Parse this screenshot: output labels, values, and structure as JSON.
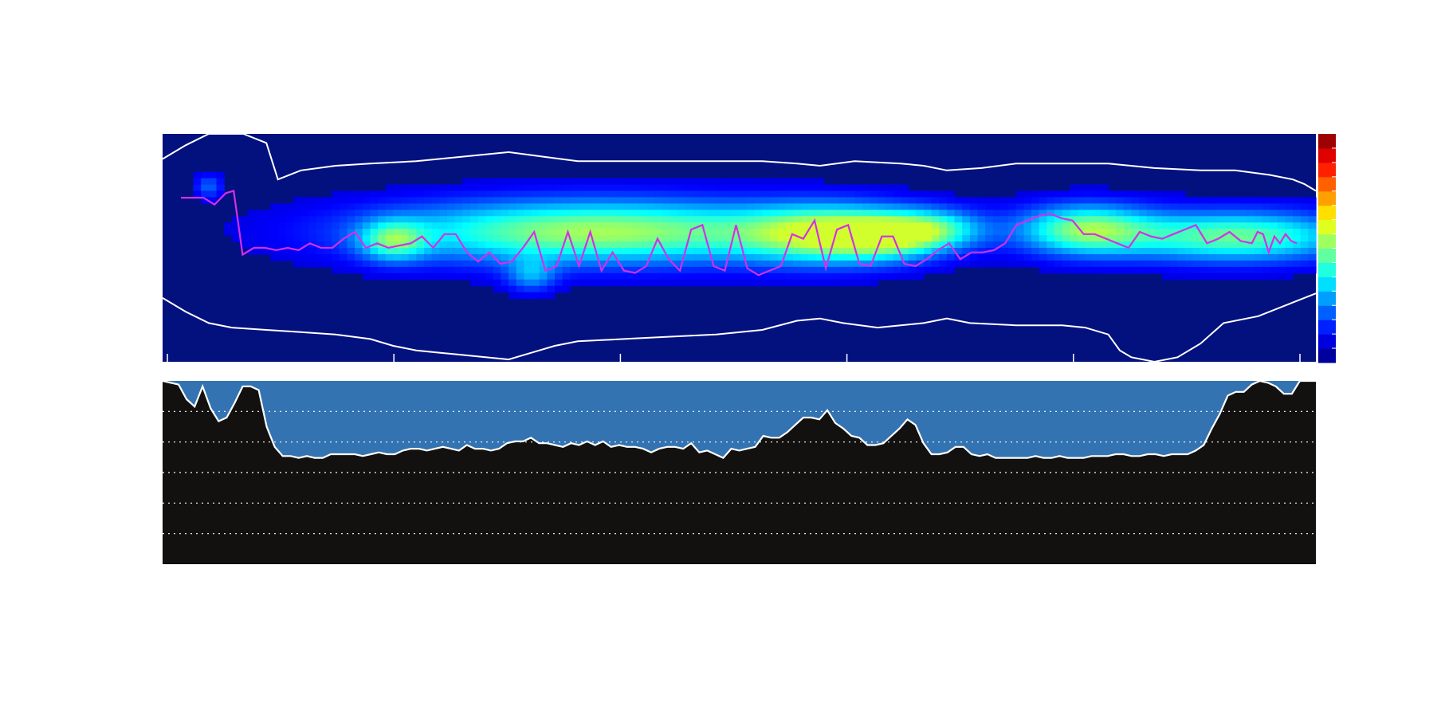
{
  "chart_data": [
    {
      "type": "heatmap",
      "title": "",
      "xlabel": "",
      "ylabel": "",
      "colormap": "jet",
      "background_color": "#03117f",
      "contour_color": "#ffffff",
      "track_color": "#d52fe8",
      "x_tick_count": 6,
      "colorbar_levels": 16,
      "blobs": [
        {
          "x": 0.2,
          "y": 0.47,
          "sx": 0.02,
          "sy": 0.06,
          "v": 0.3
        },
        {
          "x": 0.38,
          "y": 0.43,
          "sx": 0.13,
          "sy": 0.095,
          "v": 0.46
        },
        {
          "x": 0.58,
          "y": 0.44,
          "sx": 0.05,
          "sy": 0.085,
          "v": 0.42
        },
        {
          "x": 0.63,
          "y": 0.45,
          "sx": 0.03,
          "sy": 0.065,
          "v": 0.25
        },
        {
          "x": 0.67,
          "y": 0.42,
          "sx": 0.03,
          "sy": 0.06,
          "v": 0.28
        },
        {
          "x": 0.8,
          "y": 0.42,
          "sx": 0.04,
          "sy": 0.075,
          "v": 0.4
        },
        {
          "x": 0.93,
          "y": 0.45,
          "sx": 0.07,
          "sy": 0.075,
          "v": 0.4
        },
        {
          "x": 0.32,
          "y": 0.62,
          "sx": 0.015,
          "sy": 0.05,
          "v": 0.18
        },
        {
          "x": 0.04,
          "y": 0.23,
          "sx": 0.008,
          "sy": 0.035,
          "v": 0.14
        }
      ],
      "track": [
        [
          0.005,
          0.28
        ],
        [
          0.025,
          0.28
        ],
        [
          0.035,
          0.31
        ],
        [
          0.045,
          0.26
        ],
        [
          0.052,
          0.25
        ],
        [
          0.06,
          0.53
        ],
        [
          0.07,
          0.5
        ],
        [
          0.08,
          0.5
        ],
        [
          0.09,
          0.51
        ],
        [
          0.1,
          0.5
        ],
        [
          0.11,
          0.51
        ],
        [
          0.12,
          0.48
        ],
        [
          0.13,
          0.5
        ],
        [
          0.14,
          0.5
        ],
        [
          0.15,
          0.46
        ],
        [
          0.16,
          0.43
        ],
        [
          0.17,
          0.5
        ],
        [
          0.18,
          0.48
        ],
        [
          0.19,
          0.5
        ],
        [
          0.2,
          0.49
        ],
        [
          0.21,
          0.48
        ],
        [
          0.22,
          0.45
        ],
        [
          0.23,
          0.5
        ],
        [
          0.24,
          0.44
        ],
        [
          0.25,
          0.44
        ],
        [
          0.26,
          0.52
        ],
        [
          0.27,
          0.56
        ],
        [
          0.28,
          0.52
        ],
        [
          0.29,
          0.57
        ],
        [
          0.3,
          0.56
        ],
        [
          0.31,
          0.5
        ],
        [
          0.32,
          0.43
        ],
        [
          0.33,
          0.6
        ],
        [
          0.34,
          0.58
        ],
        [
          0.35,
          0.43
        ],
        [
          0.36,
          0.58
        ],
        [
          0.37,
          0.43
        ],
        [
          0.38,
          0.6
        ],
        [
          0.39,
          0.52
        ],
        [
          0.4,
          0.6
        ],
        [
          0.41,
          0.61
        ],
        [
          0.42,
          0.58
        ],
        [
          0.43,
          0.46
        ],
        [
          0.44,
          0.55
        ],
        [
          0.45,
          0.6
        ],
        [
          0.46,
          0.42
        ],
        [
          0.47,
          0.4
        ],
        [
          0.48,
          0.58
        ],
        [
          0.49,
          0.6
        ],
        [
          0.5,
          0.4
        ],
        [
          0.51,
          0.59
        ],
        [
          0.52,
          0.62
        ],
        [
          0.53,
          0.6
        ],
        [
          0.54,
          0.58
        ],
        [
          0.55,
          0.44
        ],
        [
          0.56,
          0.46
        ],
        [
          0.57,
          0.38
        ],
        [
          0.58,
          0.59
        ],
        [
          0.59,
          0.42
        ],
        [
          0.6,
          0.4
        ],
        [
          0.61,
          0.57
        ],
        [
          0.62,
          0.58
        ],
        [
          0.63,
          0.45
        ],
        [
          0.64,
          0.45
        ],
        [
          0.65,
          0.57
        ],
        [
          0.66,
          0.58
        ],
        [
          0.67,
          0.55
        ],
        [
          0.68,
          0.51
        ],
        [
          0.69,
          0.48
        ],
        [
          0.7,
          0.55
        ],
        [
          0.71,
          0.52
        ],
        [
          0.72,
          0.52
        ],
        [
          0.73,
          0.51
        ],
        [
          0.74,
          0.48
        ],
        [
          0.75,
          0.4
        ],
        [
          0.76,
          0.38
        ],
        [
          0.77,
          0.36
        ],
        [
          0.78,
          0.35
        ],
        [
          0.79,
          0.37
        ],
        [
          0.8,
          0.38
        ],
        [
          0.81,
          0.44
        ],
        [
          0.82,
          0.44
        ],
        [
          0.83,
          0.46
        ],
        [
          0.84,
          0.48
        ],
        [
          0.85,
          0.5
        ],
        [
          0.86,
          0.43
        ],
        [
          0.87,
          0.45
        ],
        [
          0.88,
          0.46
        ],
        [
          0.89,
          0.44
        ],
        [
          0.9,
          0.42
        ],
        [
          0.91,
          0.4
        ],
        [
          0.92,
          0.48
        ],
        [
          0.93,
          0.46
        ],
        [
          0.94,
          0.43
        ],
        [
          0.95,
          0.47
        ],
        [
          0.96,
          0.48
        ],
        [
          0.965,
          0.43
        ],
        [
          0.97,
          0.44
        ],
        [
          0.975,
          0.52
        ],
        [
          0.98,
          0.45
        ],
        [
          0.985,
          0.48
        ],
        [
          0.99,
          0.44
        ],
        [
          0.995,
          0.47
        ],
        [
          1.0,
          0.48
        ]
      ],
      "contour_top": [
        [
          0.0,
          0.11
        ],
        [
          0.02,
          0.05
        ],
        [
          0.04,
          0.0
        ],
        [
          0.07,
          0.0
        ],
        [
          0.09,
          0.04
        ],
        [
          0.1,
          0.2
        ],
        [
          0.12,
          0.16
        ],
        [
          0.15,
          0.14
        ],
        [
          0.18,
          0.13
        ],
        [
          0.22,
          0.12
        ],
        [
          0.26,
          0.1
        ],
        [
          0.3,
          0.08
        ],
        [
          0.33,
          0.1
        ],
        [
          0.36,
          0.12
        ],
        [
          0.4,
          0.12
        ],
        [
          0.44,
          0.12
        ],
        [
          0.48,
          0.12
        ],
        [
          0.52,
          0.12
        ],
        [
          0.55,
          0.13
        ],
        [
          0.57,
          0.14
        ],
        [
          0.6,
          0.12
        ],
        [
          0.64,
          0.13
        ],
        [
          0.66,
          0.14
        ],
        [
          0.68,
          0.16
        ],
        [
          0.71,
          0.15
        ],
        [
          0.74,
          0.13
        ],
        [
          0.78,
          0.13
        ],
        [
          0.82,
          0.13
        ],
        [
          0.86,
          0.15
        ],
        [
          0.9,
          0.16
        ],
        [
          0.93,
          0.16
        ],
        [
          0.96,
          0.18
        ],
        [
          0.98,
          0.2
        ],
        [
          0.99,
          0.22
        ],
        [
          1.0,
          0.25
        ]
      ],
      "contour_bottom": [
        [
          0.0,
          0.72
        ],
        [
          0.02,
          0.78
        ],
        [
          0.04,
          0.83
        ],
        [
          0.06,
          0.85
        ],
        [
          0.09,
          0.86
        ],
        [
          0.12,
          0.87
        ],
        [
          0.15,
          0.88
        ],
        [
          0.18,
          0.9
        ],
        [
          0.2,
          0.93
        ],
        [
          0.22,
          0.95
        ],
        [
          0.24,
          0.96
        ],
        [
          0.26,
          0.97
        ],
        [
          0.28,
          0.98
        ],
        [
          0.3,
          0.99
        ],
        [
          0.32,
          0.96
        ],
        [
          0.34,
          0.93
        ],
        [
          0.36,
          0.91
        ],
        [
          0.4,
          0.9
        ],
        [
          0.44,
          0.89
        ],
        [
          0.48,
          0.88
        ],
        [
          0.52,
          0.86
        ],
        [
          0.55,
          0.82
        ],
        [
          0.57,
          0.81
        ],
        [
          0.59,
          0.83
        ],
        [
          0.62,
          0.85
        ],
        [
          0.64,
          0.84
        ],
        [
          0.66,
          0.83
        ],
        [
          0.68,
          0.81
        ],
        [
          0.7,
          0.83
        ],
        [
          0.74,
          0.84
        ],
        [
          0.78,
          0.84
        ],
        [
          0.8,
          0.85
        ],
        [
          0.82,
          0.88
        ],
        [
          0.83,
          0.95
        ],
        [
          0.84,
          0.98
        ],
        [
          0.86,
          1.0
        ],
        [
          0.88,
          0.98
        ],
        [
          0.9,
          0.92
        ],
        [
          0.92,
          0.83
        ],
        [
          0.95,
          0.8
        ],
        [
          0.98,
          0.74
        ],
        [
          1.0,
          0.7
        ]
      ]
    },
    {
      "type": "area",
      "title": "",
      "xlabel": "",
      "ylabel": "",
      "grid": true,
      "gridlines": 5,
      "fill_color": "#121110",
      "background_color": "#3373b1",
      "line_color": "#ffffff",
      "y_values": [
        1.0,
        0.99,
        0.98,
        0.9,
        0.86,
        0.97,
        0.85,
        0.78,
        0.8,
        0.88,
        0.97,
        0.97,
        0.95,
        0.75,
        0.64,
        0.59,
        0.59,
        0.58,
        0.59,
        0.58,
        0.58,
        0.6,
        0.6,
        0.6,
        0.6,
        0.59,
        0.6,
        0.61,
        0.6,
        0.6,
        0.62,
        0.63,
        0.63,
        0.62,
        0.63,
        0.64,
        0.63,
        0.62,
        0.65,
        0.63,
        0.63,
        0.62,
        0.63,
        0.66,
        0.67,
        0.67,
        0.69,
        0.66,
        0.66,
        0.65,
        0.64,
        0.66,
        0.65,
        0.67,
        0.65,
        0.67,
        0.64,
        0.65,
        0.64,
        0.64,
        0.63,
        0.61,
        0.63,
        0.64,
        0.64,
        0.63,
        0.66,
        0.61,
        0.62,
        0.6,
        0.58,
        0.63,
        0.62,
        0.63,
        0.64,
        0.7,
        0.69,
        0.69,
        0.72,
        0.76,
        0.8,
        0.8,
        0.79,
        0.84,
        0.77,
        0.74,
        0.7,
        0.69,
        0.65,
        0.65,
        0.66,
        0.7,
        0.74,
        0.79,
        0.76,
        0.66,
        0.6,
        0.6,
        0.61,
        0.64,
        0.64,
        0.6,
        0.59,
        0.6,
        0.58,
        0.58,
        0.58,
        0.58,
        0.58,
        0.59,
        0.58,
        0.58,
        0.59,
        0.58,
        0.58,
        0.58,
        0.59,
        0.59,
        0.59,
        0.6,
        0.6,
        0.59,
        0.59,
        0.6,
        0.6,
        0.59,
        0.6,
        0.6,
        0.6,
        0.62,
        0.65,
        0.74,
        0.82,
        0.92,
        0.94,
        0.94,
        0.98,
        1.0,
        0.99,
        0.97,
        0.93,
        0.93,
        1.0,
        1.0,
        1.0
      ]
    }
  ]
}
